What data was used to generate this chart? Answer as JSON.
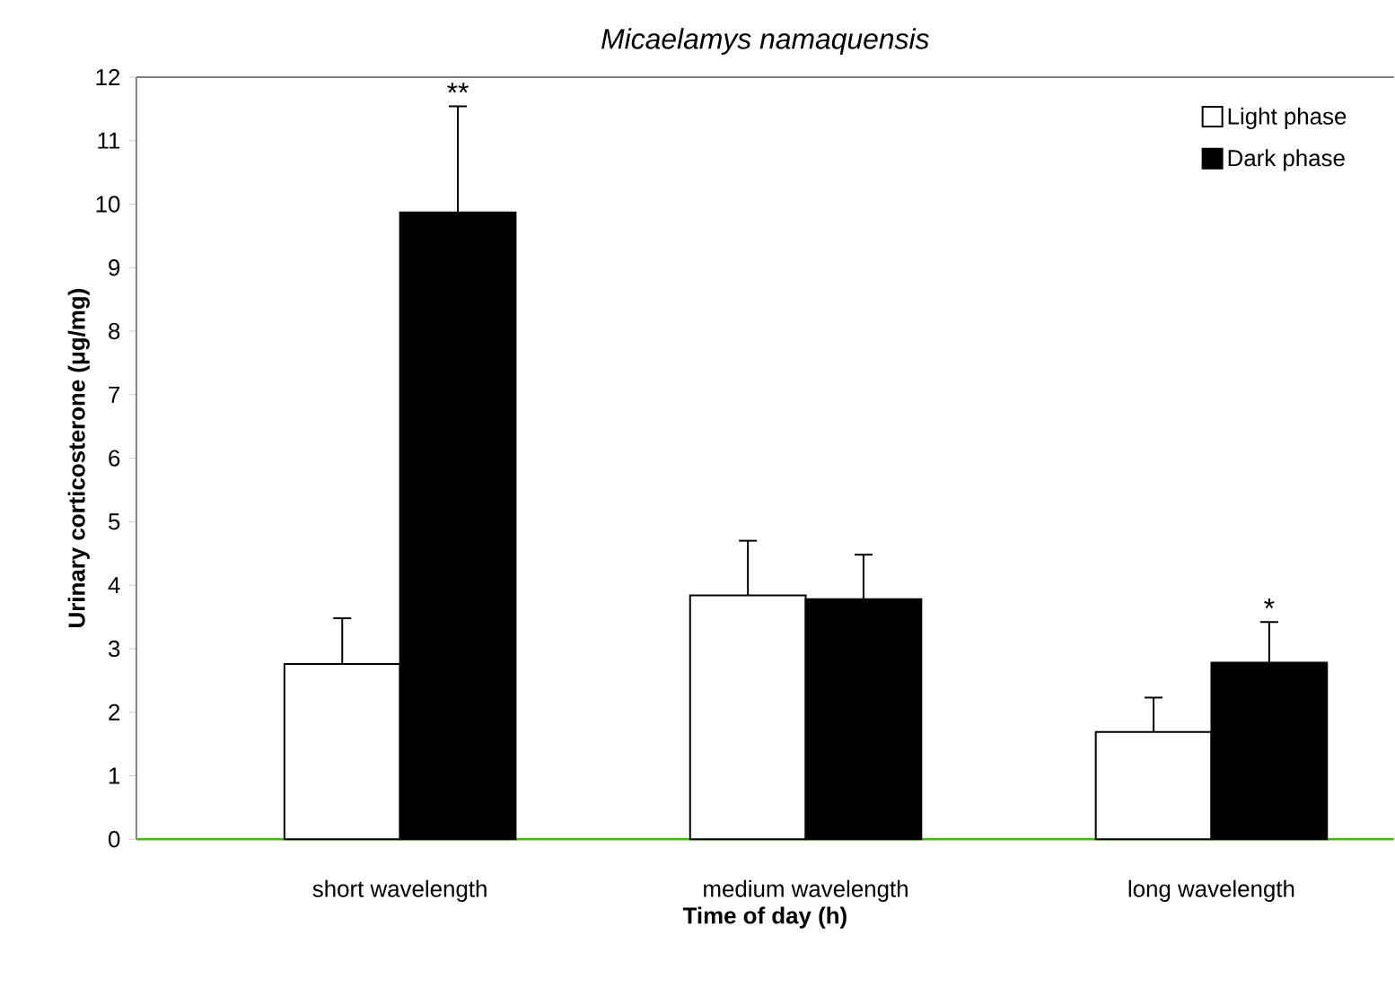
{
  "chart_data": {
    "type": "bar",
    "title": "Micaelamys namaquensis",
    "xlabel": "Time of day (h)",
    "ylabel": "Urinary corticosterone (μg/mg)",
    "categories": [
      "short wavelength",
      "medium wavelength",
      "long wavelength"
    ],
    "series": [
      {
        "name": "Light phase",
        "color": "#ffffff",
        "values": [
          2.76,
          3.84,
          1.69
        ],
        "errors": [
          [
            2.76,
            3.48
          ],
          [
            3.84,
            4.7
          ],
          [
            1.69,
            2.23
          ]
        ]
      },
      {
        "name": "Dark phase",
        "color": "#000000",
        "values": [
          9.87,
          3.78,
          2.78
        ],
        "errors": [
          [
            9.87,
            11.54
          ],
          [
            3.78,
            4.48
          ],
          [
            2.78,
            3.42
          ]
        ]
      }
    ],
    "ylim": [
      0,
      12
    ],
    "yticks": [
      0,
      1,
      2,
      3,
      4,
      5,
      6,
      7,
      8,
      9,
      10,
      11,
      12
    ],
    "annotations": [
      "**",
      {
        "text": "*",
        "x": "long wavelength",
        "y": 2.78
      }
    ],
    "legend": "top right",
    "grid": false
  }
}
